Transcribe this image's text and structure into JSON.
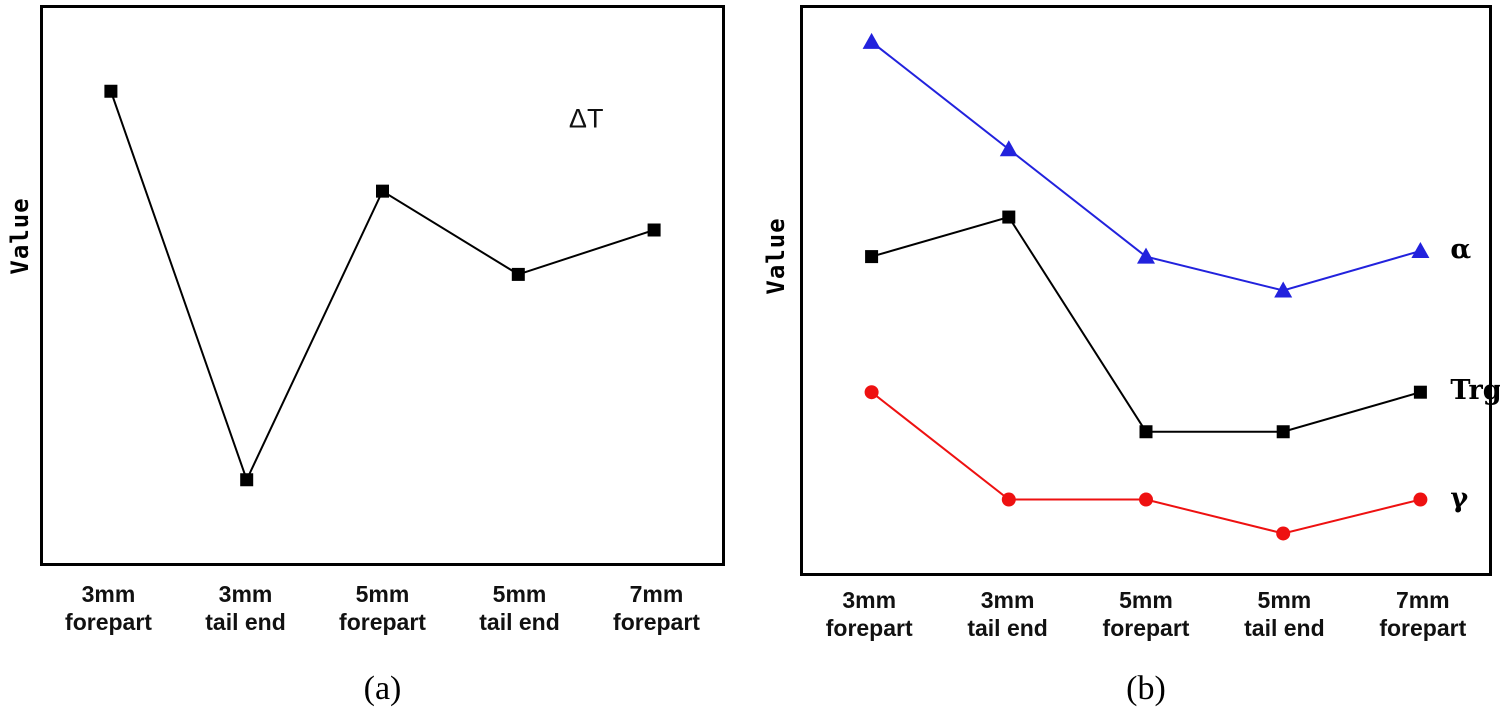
{
  "captions": {
    "a": "(a)",
    "b": "(b)"
  },
  "chart_data": [
    {
      "type": "line",
      "panel": "a",
      "title": "",
      "xlabel": "",
      "ylabel": "Value",
      "ylim": [
        0,
        1
      ],
      "grid": false,
      "categories": [
        [
          "3mm",
          "forepart"
        ],
        [
          "3mm",
          "tail end"
        ],
        [
          "5mm",
          "forepart"
        ],
        [
          "5mm",
          "tail end"
        ],
        [
          "7mm",
          "forepart"
        ]
      ],
      "series": [
        {
          "name": "ΔT",
          "marker": "square",
          "color": "#000000",
          "show_label": false,
          "values": [
            0.85,
            0.15,
            0.67,
            0.52,
            0.6
          ]
        }
      ],
      "annotation": {
        "text": "ΔT",
        "position": "upper-right"
      }
    },
    {
      "type": "line",
      "panel": "b",
      "title": "",
      "xlabel": "",
      "ylabel": "Value",
      "ylim": [
        0,
        1
      ],
      "grid": false,
      "legend_position": "right-of-last-point",
      "categories": [
        [
          "3mm",
          "forepart"
        ],
        [
          "3mm",
          "tail end"
        ],
        [
          "5mm",
          "forepart"
        ],
        [
          "5mm",
          "tail end"
        ],
        [
          "7mm",
          "forepart"
        ]
      ],
      "series": [
        {
          "name": "α",
          "marker": "triangle",
          "color": "#2222dd",
          "show_label": true,
          "values": [
            0.94,
            0.75,
            0.56,
            0.5,
            0.57
          ]
        },
        {
          "name": "Trg",
          "marker": "square",
          "color": "#000000",
          "show_label": true,
          "values": [
            0.56,
            0.63,
            0.25,
            0.25,
            0.32
          ]
        },
        {
          "name": "γ",
          "marker": "circle",
          "color": "#ee1111",
          "show_label": true,
          "values": [
            0.32,
            0.13,
            0.13,
            0.07,
            0.13
          ]
        }
      ]
    }
  ]
}
